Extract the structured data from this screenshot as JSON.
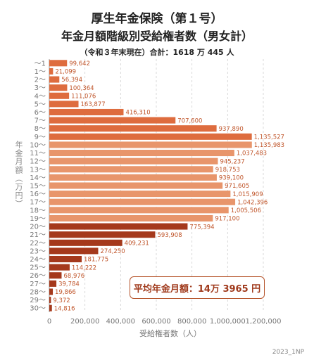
{
  "title": "厚生年金保険（第１号）",
  "subtitle": "年金月額階級別受給権者数（男女計）",
  "note": "（令和３年末現在）合計：1618 万 445 人",
  "average_box": "平均年金月額：14万 3965 円",
  "credit": "2023_1NP",
  "colors": {
    "tier_low": "#de6c3e",
    "tier_mid": "#e8956b",
    "tier_high": "#a5391c",
    "axis_text": "#777777",
    "value_text": "#c0552a"
  },
  "chart_data": {
    "type": "bar",
    "orientation": "horizontal",
    "title": "年金月額階級別受給権者数（男女計）",
    "xlabel": "受給権者数（人）",
    "ylabel": "年金月額（万円）",
    "xlim": [
      0,
      1200000
    ],
    "x_ticks": [
      "0",
      "200,000",
      "400,000",
      "600,000",
      "800,000",
      "1,000,000",
      "1,200,000"
    ],
    "x_tick_values": [
      0,
      200000,
      400000,
      600000,
      800000,
      1000000,
      1200000
    ],
    "grid": "vertical dashed",
    "categories": [
      "～1",
      "1～",
      "2～",
      "3～",
      "4～",
      "5～",
      "6～",
      "7～",
      "8～",
      "9～",
      "10～",
      "11～",
      "12～",
      "13～",
      "14～",
      "15～",
      "16～",
      "17～",
      "18～",
      "19～",
      "20～",
      "21～",
      "22～",
      "23～",
      "24～",
      "25～",
      "26～",
      "27～",
      "28～",
      "29～",
      "30～"
    ],
    "values": [
      99642,
      21099,
      56394,
      100364,
      111076,
      163877,
      416310,
      707600,
      937890,
      1135527,
      1135983,
      1037483,
      945237,
      918753,
      939100,
      971605,
      1015909,
      1042396,
      1005506,
      917100,
      775394,
      593908,
      409231,
      274250,
      181775,
      114222,
      68976,
      39784,
      19866,
      9372,
      14816
    ],
    "labels": [
      "99,642",
      "21,099",
      "56,394",
      "100,364",
      "111,076",
      "163,877",
      "416,310",
      "707,600",
      "937,890",
      "1,135,527",
      "1,135,983",
      "1,037,483",
      "945,237",
      "918,753",
      "939,100",
      "971,605",
      "1,015,909",
      "1,042,396",
      "1,005,506",
      "917,100",
      "775,394",
      "593,908",
      "409,231",
      "274,250",
      "181,775",
      "114,222",
      "68,976",
      "39,784",
      "19,866",
      "9,372",
      "14,816"
    ],
    "tiers": [
      "low",
      "low",
      "low",
      "low",
      "low",
      "low",
      "low",
      "low",
      "low",
      "low",
      "mid",
      "mid",
      "mid",
      "mid",
      "mid",
      "mid",
      "mid",
      "mid",
      "mid",
      "mid",
      "high",
      "high",
      "high",
      "high",
      "high",
      "high",
      "high",
      "high",
      "high",
      "high",
      "high"
    ]
  }
}
